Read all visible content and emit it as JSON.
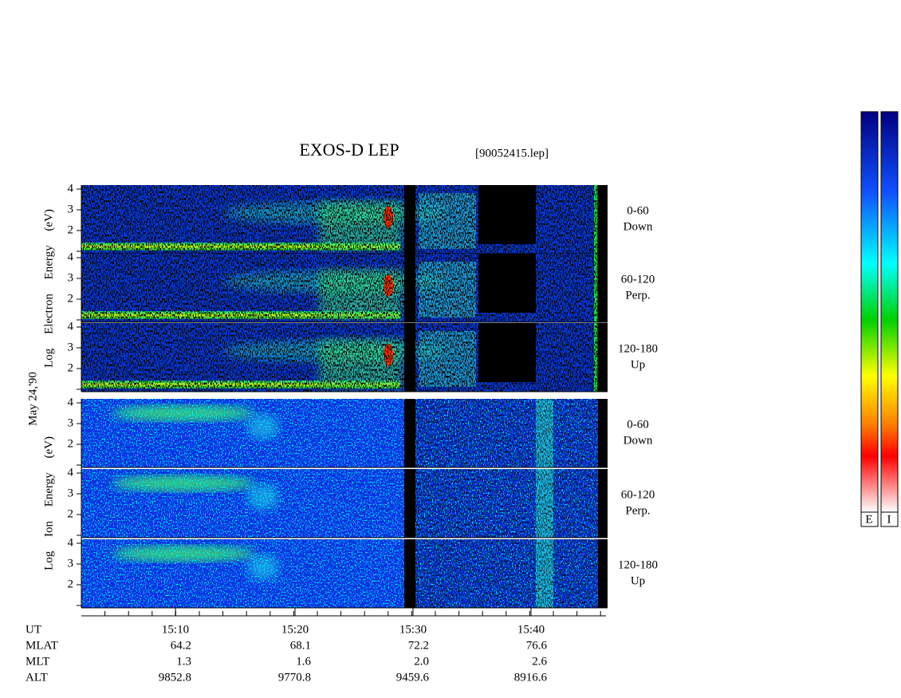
{
  "header": {
    "title": "EXOS-D LEP",
    "file": "[90052415.lep]"
  },
  "date": "May 24,'90",
  "groups": [
    {
      "ylabel": "Log Electron Energy (eV)",
      "panels": [
        {
          "range": "0-60",
          "direction": "Down"
        },
        {
          "range": "60-120",
          "direction": "Perp."
        },
        {
          "range": "120-180",
          "direction": "Up"
        }
      ]
    },
    {
      "ylabel": "Log Ion Energy (eV)",
      "panels": [
        {
          "range": "0-60",
          "direction": "Down"
        },
        {
          "range": "60-120",
          "direction": "Perp."
        },
        {
          "range": "120-180",
          "direction": "Up"
        }
      ]
    }
  ],
  "yticks": [
    2,
    3,
    4
  ],
  "time_axis": {
    "rows": [
      {
        "label": "UT",
        "values": [
          "15:10",
          "15:20",
          "15:30",
          "15:40"
        ]
      },
      {
        "label": "MLAT",
        "values": [
          "64.2",
          "68.1",
          "72.2",
          "76.6"
        ]
      },
      {
        "label": "MLT",
        "values": [
          "1.3",
          "1.6",
          "2.0",
          "2.6"
        ]
      },
      {
        "label": "ALT",
        "values": [
          "9852.8",
          "9770.8",
          "9459.6",
          "8916.6"
        ]
      }
    ]
  },
  "colorbar_labels": [
    "E",
    "I"
  ]
}
